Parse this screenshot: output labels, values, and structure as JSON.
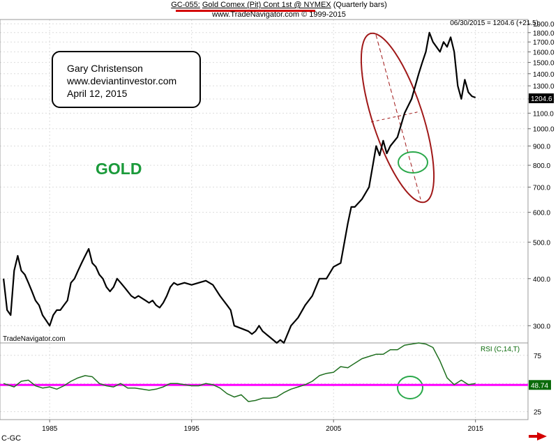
{
  "header": {
    "code": "GC-055:",
    "title": "Gold Comex (Pit) Cont 1st @ NYMEX",
    "period": "(Quarterly bars)",
    "copyright": "www.TradeNavigator.com © 1999-2015"
  },
  "price_info": "06/30/2015 = 1204.6 (+21.5)",
  "note": {
    "line1": "Gary Christenson",
    "line2": "www.deviantinvestor.com",
    "line3": "April 12, 2015"
  },
  "gold_label": "GOLD",
  "brand_label": "TradeNavigator.com",
  "rsi_label": "RSI (C,14,T)",
  "symbol": "C-GC",
  "colors": {
    "price_line": "#000000",
    "rsi_line": "#1f6f1f",
    "rsi_level_line": "#ff00ff",
    "ellipse": "#a01818",
    "circle": "#2aa84a",
    "current_price_box": "#000000",
    "rsi_value_box": "#0a6a0a",
    "grid": "#dcdcdc"
  },
  "chart_data": [
    {
      "type": "line",
      "title": "Gold Comex (Pit) Cont 1st @ NYMEX",
      "x_axis": {
        "ticks": [
          "1985",
          "1995",
          "2005",
          "2015"
        ],
        "range": [
          1981.5,
          2018.7
        ]
      },
      "y_axis": {
        "scale": "log",
        "range": [
          270,
          1950
        ],
        "ticks": [
          "300.0",
          "400.0",
          "500.0",
          "600.0",
          "700.0",
          "800.0",
          "900.0",
          "1000.0",
          "1100.0",
          "1200.0",
          "1300.0",
          "1400.0",
          "1500.0",
          "1600.0",
          "1700.0",
          "1800.0",
          "1900.0"
        ]
      },
      "current_value_label": "1204.6",
      "grid": true,
      "series": [
        {
          "x": [
            1981.75,
            1982.0,
            1982.25,
            1982.5,
            1982.75,
            1983.0,
            1983.25,
            1983.5,
            1983.75,
            1984.0,
            1984.25,
            1984.5,
            1984.75,
            1985.0,
            1985.25,
            1985.5,
            1985.75,
            1986.0,
            1986.25,
            1986.5,
            1986.75,
            1987.0,
            1987.25,
            1987.5,
            1987.75,
            1988.0,
            1988.25,
            1988.5,
            1988.75,
            1989.0,
            1989.25,
            1989.5,
            1989.75,
            1990.0,
            1990.25,
            1990.5,
            1990.75,
            1991.0,
            1991.25,
            1991.5,
            1991.75,
            1992.0,
            1992.25,
            1992.5,
            1992.75,
            1993.0,
            1993.25,
            1993.5,
            1993.75,
            1994.0,
            1994.5,
            1995.0,
            1995.5,
            1996.0,
            1996.5,
            1997.0,
            1997.5,
            1997.75,
            1998.0,
            1998.5,
            1999.0,
            1999.25,
            1999.5,
            1999.75,
            2000.0,
            2000.5,
            2001.0,
            2001.25,
            2001.5,
            2002.0,
            2002.5,
            2003.0,
            2003.5,
            2004.0,
            2004.5,
            2005.0,
            2005.5,
            2006.0,
            2006.25,
            2006.5,
            2007.0,
            2007.5,
            2008.0,
            2008.25,
            2008.5,
            2008.75,
            2009.0,
            2009.5,
            2010.0,
            2010.5,
            2011.0,
            2011.25,
            2011.5,
            2011.75,
            2012.0,
            2012.25,
            2012.5,
            2012.75,
            2013.0,
            2013.25,
            2013.5,
            2013.75,
            2014.0,
            2014.25,
            2014.5,
            2014.75,
            2015.0
          ],
          "y": [
            400,
            330,
            320,
            420,
            460,
            420,
            410,
            390,
            370,
            350,
            340,
            320,
            310,
            300,
            320,
            330,
            330,
            340,
            350,
            390,
            400,
            420,
            440,
            460,
            480,
            440,
            430,
            410,
            400,
            380,
            370,
            380,
            400,
            390,
            380,
            370,
            360,
            355,
            360,
            355,
            350,
            345,
            350,
            340,
            335,
            345,
            360,
            380,
            390,
            385,
            390,
            385,
            390,
            395,
            385,
            360,
            340,
            330,
            300,
            295,
            290,
            285,
            290,
            300,
            290,
            280,
            270,
            275,
            270,
            300,
            315,
            340,
            360,
            400,
            400,
            430,
            440,
            560,
            620,
            620,
            650,
            700,
            900,
            850,
            930,
            860,
            900,
            950,
            1100,
            1200,
            1400,
            1500,
            1600,
            1800,
            1700,
            1650,
            1600,
            1700,
            1650,
            1750,
            1600,
            1300,
            1200,
            1350,
            1250,
            1220,
            1210
          ]
        }
      ]
    },
    {
      "type": "line",
      "title": "RSI (C,14,T)",
      "x_axis": {
        "ticks": [
          "1985",
          "1995",
          "2005",
          "2015"
        ],
        "range": [
          1981.5,
          2018.7
        ]
      },
      "y_axis": {
        "scale": "linear",
        "range": [
          18,
          86
        ],
        "ticks": [
          "75",
          "50",
          "25"
        ]
      },
      "reference_value": 48.74,
      "series": [
        {
          "x": [
            1981.75,
            1982.5,
            1983.0,
            1983.5,
            1984.0,
            1984.5,
            1985.0,
            1985.5,
            1986.0,
            1986.5,
            1987.0,
            1987.5,
            1988.0,
            1988.5,
            1989.0,
            1989.5,
            1990.0,
            1990.5,
            1991.0,
            1991.5,
            1992.0,
            1992.5,
            1993.0,
            1993.5,
            1994.0,
            1994.5,
            1995.0,
            1995.5,
            1996.0,
            1996.5,
            1997.0,
            1997.5,
            1998.0,
            1998.5,
            1999.0,
            1999.5,
            2000.0,
            2000.5,
            2001.0,
            2001.5,
            2002.0,
            2002.5,
            2003.0,
            2003.5,
            2004.0,
            2004.5,
            2005.0,
            2005.5,
            2006.0,
            2006.5,
            2007.0,
            2007.5,
            2008.0,
            2008.5,
            2009.0,
            2009.5,
            2010.0,
            2010.5,
            2011.0,
            2011.5,
            2012.0,
            2012.5,
            2013.0,
            2013.5,
            2014.0,
            2014.5,
            2015.0
          ],
          "y": [
            50,
            47,
            52,
            53,
            48,
            46,
            47,
            45,
            48,
            52,
            55,
            57,
            56,
            50,
            48,
            47,
            50,
            46,
            46,
            45,
            44,
            45,
            47,
            50,
            50,
            49,
            48,
            48,
            50,
            49,
            46,
            41,
            38,
            40,
            34,
            35,
            37,
            37,
            38,
            42,
            45,
            47,
            49,
            52,
            57,
            59,
            60,
            65,
            64,
            68,
            72,
            74,
            76,
            76,
            80,
            80,
            84,
            85,
            86,
            85,
            82,
            70,
            55,
            49,
            53,
            49,
            50
          ]
        }
      ]
    }
  ]
}
